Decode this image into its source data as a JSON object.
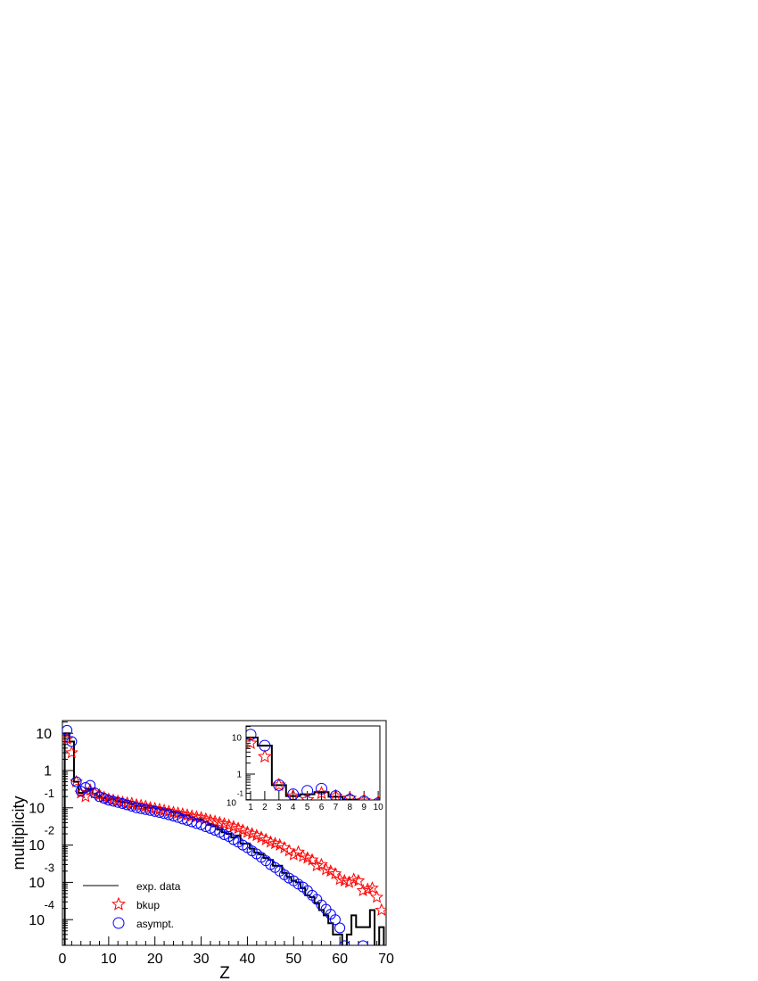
{
  "chart_data": {
    "type": "scatter",
    "xlabel": "Z",
    "ylabel": "multiplicity",
    "xlim": [
      0,
      70
    ],
    "ylim": [
      2e-05,
      22
    ],
    "yscale": "log",
    "grid": false,
    "legend_position": "bottom-left",
    "x_ticks": [
      "0",
      "10",
      "20",
      "30",
      "40",
      "50",
      "60",
      "70"
    ],
    "y_ticks": [
      {
        "base": "10",
        "exp": "",
        "value": 10
      },
      {
        "base": "1",
        "exp": "",
        "value": 1
      },
      {
        "base": "10",
        "exp": "-1",
        "value": 0.1
      },
      {
        "base": "10",
        "exp": "-2",
        "value": 0.01
      },
      {
        "base": "10",
        "exp": "-3",
        "value": 0.001
      },
      {
        "base": "10",
        "exp": "-4",
        "value": 0.0001
      }
    ],
    "colors": {
      "exp": "#000000",
      "bkup": "#ff0000",
      "asympt": "#0000ff"
    },
    "series": [
      {
        "name": "exp. data",
        "style": "histogram",
        "x": [
          1,
          2,
          3,
          4,
          5,
          6,
          7,
          8,
          9,
          10,
          11,
          12,
          13,
          14,
          15,
          16,
          17,
          18,
          19,
          20,
          21,
          22,
          23,
          24,
          25,
          26,
          27,
          28,
          29,
          30,
          31,
          32,
          33,
          34,
          35,
          36,
          37,
          38,
          39,
          40,
          41,
          42,
          43,
          44,
          45,
          46,
          47,
          48,
          49,
          50,
          51,
          52,
          53,
          54,
          55,
          56,
          57,
          58,
          59,
          60,
          61,
          62,
          63,
          64,
          65,
          66,
          67,
          68,
          69,
          70
        ],
        "values": [
          10,
          6,
          0.5,
          0.25,
          0.28,
          0.32,
          0.24,
          0.2,
          0.18,
          0.16,
          0.17,
          0.15,
          0.14,
          0.14,
          0.126,
          0.112,
          0.112,
          0.1,
          0.1,
          0.1,
          0.095,
          0.089,
          0.089,
          0.076,
          0.079,
          0.063,
          0.063,
          0.056,
          0.05,
          0.05,
          0.042,
          0.035,
          0.032,
          0.026,
          0.022,
          0.02,
          0.016,
          0.018,
          0.011,
          0.011,
          0.008,
          0.0063,
          0.0056,
          0.0045,
          0.004,
          0.0028,
          0.0028,
          0.0018,
          0.0014,
          0.0011,
          0.001,
          0.0007,
          0.00045,
          0.0004,
          0.00028,
          0.00018,
          0.00013,
          8e-05,
          4e-05,
          4e-05,
          0,
          4e-05,
          0.00013,
          6.3e-05,
          6.3e-05,
          6.3e-05,
          0.00018,
          0,
          6.3e-05,
          0
        ]
      },
      {
        "name": "bkup",
        "style": "star",
        "x": [
          1,
          2,
          3,
          4,
          5,
          6,
          7,
          8,
          9,
          10,
          11,
          12,
          13,
          14,
          15,
          16,
          17,
          18,
          19,
          20,
          21,
          22,
          23,
          24,
          25,
          26,
          27,
          28,
          29,
          30,
          31,
          32,
          33,
          34,
          35,
          36,
          37,
          38,
          39,
          40,
          41,
          42,
          43,
          44,
          45,
          46,
          47,
          48,
          49,
          50,
          51,
          52,
          53,
          54,
          55,
          56,
          57,
          58,
          59,
          60,
          61,
          62,
          63,
          64,
          65,
          66,
          67,
          68,
          69
        ],
        "values": [
          7,
          3,
          0.5,
          0.25,
          0.2,
          0.3,
          0.25,
          0.22,
          0.19,
          0.17,
          0.16,
          0.15,
          0.14,
          0.135,
          0.13,
          0.12,
          0.115,
          0.11,
          0.1,
          0.095,
          0.09,
          0.085,
          0.08,
          0.075,
          0.072,
          0.068,
          0.064,
          0.06,
          0.057,
          0.054,
          0.05,
          0.046,
          0.043,
          0.04,
          0.037,
          0.034,
          0.031,
          0.028,
          0.025,
          0.022,
          0.02,
          0.018,
          0.016,
          0.014,
          0.012,
          0.011,
          0.01,
          0.0085,
          0.007,
          0.0055,
          0.0065,
          0.005,
          0.0045,
          0.004,
          0.0028,
          0.003,
          0.0022,
          0.002,
          0.0017,
          0.0012,
          0.0011,
          0.001,
          0.0012,
          0.0011,
          0.0006,
          0.00065,
          0.0007,
          0.0004,
          0.00018
        ]
      },
      {
        "name": "asympt.",
        "style": "circle",
        "x": [
          1,
          2,
          3,
          4,
          5,
          6,
          7,
          8,
          9,
          10,
          11,
          12,
          13,
          14,
          15,
          16,
          17,
          18,
          19,
          20,
          21,
          22,
          23,
          24,
          25,
          26,
          27,
          28,
          29,
          30,
          31,
          32,
          33,
          34,
          35,
          36,
          37,
          38,
          39,
          40,
          41,
          42,
          43,
          44,
          45,
          46,
          47,
          48,
          49,
          50,
          51,
          52,
          53,
          54,
          55,
          56,
          57,
          58,
          59,
          60,
          61,
          65
        ],
        "values": [
          12,
          6,
          0.5,
          0.28,
          0.35,
          0.4,
          0.25,
          0.2,
          0.18,
          0.16,
          0.15,
          0.14,
          0.13,
          0.12,
          0.11,
          0.1,
          0.095,
          0.09,
          0.085,
          0.08,
          0.075,
          0.07,
          0.065,
          0.06,
          0.055,
          0.05,
          0.046,
          0.042,
          0.038,
          0.035,
          0.031,
          0.028,
          0.025,
          0.022,
          0.019,
          0.017,
          0.014,
          0.012,
          0.01,
          0.0085,
          0.007,
          0.0058,
          0.0047,
          0.0038,
          0.003,
          0.0025,
          0.002,
          0.0016,
          0.0013,
          0.0011,
          0.0009,
          0.00075,
          0.0006,
          0.00045,
          0.00035,
          0.00025,
          0.00019,
          0.00014,
          0.0001,
          6e-05,
          2e-05,
          2e-05
        ]
      }
    ],
    "inset": {
      "xlim": [
        0.6,
        10
      ],
      "ylim": [
        0.08,
        25
      ],
      "yscale": "log",
      "x_ticks": [
        "1",
        "2",
        "3",
        "4",
        "5",
        "6",
        "7",
        "8",
        "9",
        "10"
      ],
      "y_ticks": [
        {
          "base": "10",
          "exp": "",
          "value": 10
        },
        {
          "base": "1",
          "exp": "",
          "value": 1
        },
        {
          "base": "10",
          "exp": "-1",
          "value": 0.1
        }
      ]
    }
  }
}
